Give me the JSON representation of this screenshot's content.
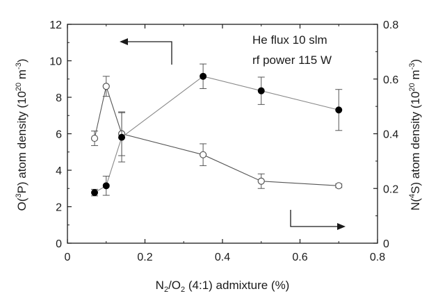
{
  "chart_data": {
    "type": "scatter",
    "x_label_parts": {
      "main1": "N",
      "sub1": "2",
      "mid": "/O",
      "sub2": "2",
      "rest": " (4:1) admixture (%)"
    },
    "y_left_label_parts": {
      "a": "O(",
      "sup": "3",
      "b": "P) atom density (10",
      "sup2": "20",
      "c": " m",
      "sup3": "-3",
      "d": ")"
    },
    "y_right_label_parts": {
      "a": "N(",
      "sup": "4",
      "b": "S) atom density (10",
      "sup2": "20",
      "c": " m",
      "sup3": "-3",
      "d": ")"
    },
    "xlim": [
      0,
      0.8
    ],
    "ylim_left": [
      0,
      12
    ],
    "ylim_right": [
      0,
      0.8
    ],
    "x_ticks": [
      0,
      0.2,
      0.4,
      0.6,
      0.8
    ],
    "x_tick_labels": [
      "0",
      "0.2",
      "0.4",
      "0.6",
      "0.8"
    ],
    "y_left_ticks": [
      0,
      2,
      4,
      6,
      8,
      10,
      12
    ],
    "y_left_tick_labels": [
      "0",
      "2",
      "4",
      "6",
      "8",
      "10",
      "12"
    ],
    "y_right_ticks": [
      0,
      0.2,
      0.4,
      0.6,
      0.8
    ],
    "y_right_tick_labels": [
      "0",
      "0.2",
      "0.4",
      "0.6",
      "0.8"
    ],
    "annotations": [
      "He flux 10 slm",
      "rf power 115 W"
    ],
    "series": [
      {
        "name": "O(3P)",
        "axis": "left",
        "marker": "open-circle",
        "color": "#444444",
        "x": [
          0.07,
          0.1,
          0.14,
          0.35,
          0.5,
          0.7
        ],
        "y": [
          5.75,
          8.6,
          6.0,
          4.85,
          3.4,
          3.15
        ],
        "err": [
          0.4,
          0.55,
          1.2,
          0.6,
          0.4,
          0.1
        ]
      },
      {
        "name": "N(4S)",
        "axis": "right",
        "marker": "filled-circle",
        "color": "#000000",
        "x": [
          0.07,
          0.1,
          0.14,
          0.35,
          0.5,
          0.7
        ],
        "y": [
          0.185,
          0.21,
          0.387,
          0.61,
          0.557,
          0.487
        ],
        "err": [
          0.012,
          0.035,
          0.09,
          0.045,
          0.05,
          0.075
        ]
      }
    ],
    "arrows": [
      {
        "points_to": "left-axis",
        "series": "O(3P)"
      },
      {
        "points_to": "right-axis",
        "series": "N(4S)"
      }
    ]
  }
}
